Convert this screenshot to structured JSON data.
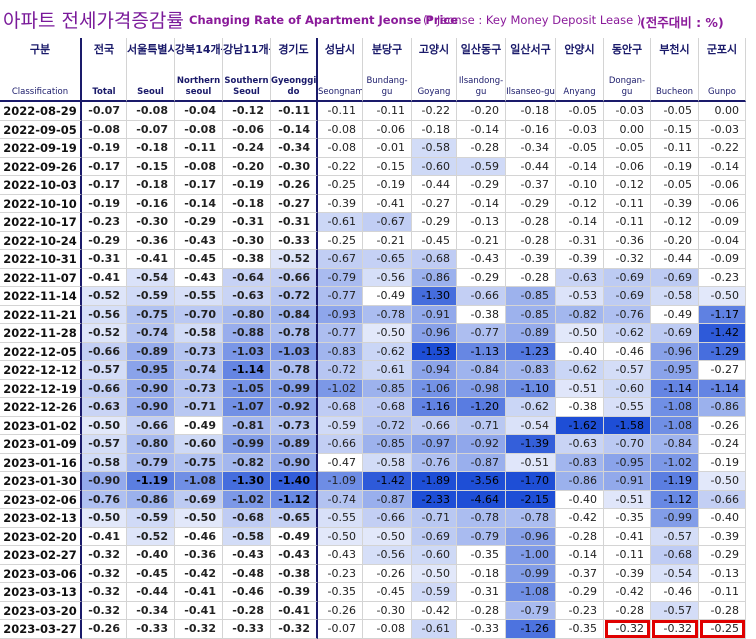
{
  "title": {
    "korean": "아파트 전세가격증감률",
    "english": "Changing Rate of Apartment Jeonse Price",
    "note": "(* Jeonse : Key Money Deposit Lease )",
    "unit": "(전주대비 : %)"
  },
  "colors": {
    "title": "#7a1a9a",
    "header_text": "#1a1a6a",
    "highlight_frame": "#e00000",
    "negative_scale_light": "#e6ecfa",
    "negative_scale_dark": "#1f4fd6"
  },
  "chart_data": {
    "type": "heatmap",
    "columns": [
      {
        "ko": "구분",
        "en": "Classification"
      },
      {
        "ko": "전국",
        "en": "Total"
      },
      {
        "ko": "서울특별시",
        "en": "Seoul"
      },
      {
        "ko": "강북14개구",
        "en": "Northern seoul"
      },
      {
        "ko": "강남11개구",
        "en": "Southern Seoul"
      },
      {
        "ko": "경기도",
        "en": "Gyeonggi-do"
      },
      {
        "ko": "성남시",
        "en": "Seongnam"
      },
      {
        "ko": "분당구",
        "en": "Bundang-gu"
      },
      {
        "ko": "고양시",
        "en": "Goyang"
      },
      {
        "ko": "일산동구",
        "en": "Ilsandong-gu"
      },
      {
        "ko": "일산서구",
        "en": "Ilsanseo-gu"
      },
      {
        "ko": "안양시",
        "en": "Anyang"
      },
      {
        "ko": "동안구",
        "en": "Dongan-gu"
      },
      {
        "ko": "부천시",
        "en": "Bucheon"
      },
      {
        "ko": "군포시",
        "en": "Gunpo"
      }
    ],
    "rows": [
      {
        "date": "2022-08-29",
        "values": [
          "-0.07",
          "-0.08",
          "-0.04",
          "-0.12",
          "-0.11",
          "-0.11",
          "-0.11",
          "-0.22",
          "-0.20",
          "-0.18",
          "-0.05",
          "-0.03",
          "-0.05",
          "0.00"
        ]
      },
      {
        "date": "2022-09-05",
        "values": [
          "-0.08",
          "-0.07",
          "-0.08",
          "-0.06",
          "-0.14",
          "-0.08",
          "-0.06",
          "-0.18",
          "-0.14",
          "-0.16",
          "-0.03",
          "0.00",
          "-0.15",
          "-0.03"
        ]
      },
      {
        "date": "2022-09-19",
        "values": [
          "-0.19",
          "-0.18",
          "-0.11",
          "-0.24",
          "-0.34",
          "-0.08",
          "-0.01",
          "-0.58",
          "-0.28",
          "-0.34",
          "-0.05",
          "-0.05",
          "-0.11",
          "-0.22"
        ]
      },
      {
        "date": "2022-09-26",
        "values": [
          "-0.17",
          "-0.15",
          "-0.08",
          "-0.20",
          "-0.30",
          "-0.22",
          "-0.15",
          "-0.60",
          "-0.59",
          "-0.44",
          "-0.14",
          "-0.06",
          "-0.19",
          "-0.14"
        ]
      },
      {
        "date": "2022-10-03",
        "values": [
          "-0.17",
          "-0.18",
          "-0.17",
          "-0.19",
          "-0.26",
          "-0.25",
          "-0.19",
          "-0.44",
          "-0.29",
          "-0.37",
          "-0.10",
          "-0.12",
          "-0.05",
          "-0.06"
        ]
      },
      {
        "date": "2022-10-10",
        "values": [
          "-0.19",
          "-0.16",
          "-0.14",
          "-0.18",
          "-0.27",
          "-0.39",
          "-0.41",
          "-0.27",
          "-0.14",
          "-0.29",
          "-0.12",
          "-0.11",
          "-0.39",
          "-0.06"
        ]
      },
      {
        "date": "2022-10-17",
        "values": [
          "-0.23",
          "-0.30",
          "-0.29",
          "-0.31",
          "-0.31",
          "-0.61",
          "-0.67",
          "-0.29",
          "-0.13",
          "-0.28",
          "-0.14",
          "-0.11",
          "-0.12",
          "-0.09"
        ]
      },
      {
        "date": "2022-10-24",
        "values": [
          "-0.29",
          "-0.36",
          "-0.43",
          "-0.30",
          "-0.33",
          "-0.25",
          "-0.21",
          "-0.45",
          "-0.21",
          "-0.28",
          "-0.31",
          "-0.36",
          "-0.20",
          "-0.04"
        ]
      },
      {
        "date": "2022-10-31",
        "values": [
          "-0.31",
          "-0.41",
          "-0.45",
          "-0.38",
          "-0.52",
          "-0.67",
          "-0.65",
          "-0.68",
          "-0.43",
          "-0.39",
          "-0.39",
          "-0.32",
          "-0.44",
          "-0.09"
        ]
      },
      {
        "date": "2022-11-07",
        "values": [
          "-0.41",
          "-0.54",
          "-0.43",
          "-0.64",
          "-0.66",
          "-0.79",
          "-0.56",
          "-0.86",
          "-0.29",
          "-0.28",
          "-0.63",
          "-0.69",
          "-0.69",
          "-0.23"
        ]
      },
      {
        "date": "2022-11-14",
        "values": [
          "-0.52",
          "-0.59",
          "-0.55",
          "-0.63",
          "-0.72",
          "-0.77",
          "-0.49",
          "-1.30",
          "-0.66",
          "-0.85",
          "-0.53",
          "-0.69",
          "-0.58",
          "-0.50"
        ]
      },
      {
        "date": "2022-11-21",
        "values": [
          "-0.56",
          "-0.75",
          "-0.70",
          "-0.80",
          "-0.84",
          "-0.93",
          "-0.78",
          "-0.91",
          "-0.38",
          "-0.85",
          "-0.82",
          "-0.76",
          "-0.49",
          "-1.17"
        ]
      },
      {
        "date": "2022-11-28",
        "values": [
          "-0.52",
          "-0.74",
          "-0.58",
          "-0.88",
          "-0.78",
          "-0.77",
          "-0.50",
          "-0.96",
          "-0.77",
          "-0.89",
          "-0.50",
          "-0.62",
          "-0.69",
          "-1.42"
        ]
      },
      {
        "date": "2022-12-05",
        "values": [
          "-0.66",
          "-0.89",
          "-0.73",
          "-1.03",
          "-1.03",
          "-0.83",
          "-0.62",
          "-1.53",
          "-1.13",
          "-1.23",
          "-0.40",
          "-0.46",
          "-0.96",
          "-1.29"
        ]
      },
      {
        "date": "2022-12-12",
        "values": [
          "-0.57",
          "-0.95",
          "-0.74",
          "-1.14",
          "-0.78",
          "-0.72",
          "-0.61",
          "-0.94",
          "-0.84",
          "-0.83",
          "-0.62",
          "-0.57",
          "-0.95",
          "-0.27"
        ]
      },
      {
        "date": "2022-12-19",
        "values": [
          "-0.66",
          "-0.90",
          "-0.73",
          "-1.05",
          "-0.99",
          "-1.02",
          "-0.85",
          "-1.06",
          "-0.98",
          "-1.10",
          "-0.51",
          "-0.60",
          "-1.14",
          "-1.14"
        ]
      },
      {
        "date": "2022-12-26",
        "values": [
          "-0.63",
          "-0.90",
          "-0.71",
          "-1.07",
          "-0.92",
          "-0.68",
          "-0.68",
          "-1.16",
          "-1.20",
          "-0.62",
          "-0.38",
          "-0.55",
          "-1.08",
          "-0.86"
        ]
      },
      {
        "date": "2023-01-02",
        "values": [
          "-0.50",
          "-0.66",
          "-0.49",
          "-0.81",
          "-0.73",
          "-0.59",
          "-0.72",
          "-0.66",
          "-0.71",
          "-0.54",
          "-1.62",
          "-1.58",
          "-1.08",
          "-0.26"
        ]
      },
      {
        "date": "2023-01-09",
        "values": [
          "-0.57",
          "-0.80",
          "-0.60",
          "-0.99",
          "-0.89",
          "-0.66",
          "-0.85",
          "-0.97",
          "-0.92",
          "-1.39",
          "-0.63",
          "-0.70",
          "-0.84",
          "-0.24"
        ]
      },
      {
        "date": "2023-01-16",
        "values": [
          "-0.58",
          "-0.79",
          "-0.75",
          "-0.82",
          "-0.90",
          "-0.47",
          "-0.58",
          "-0.76",
          "-0.87",
          "-0.51",
          "-0.83",
          "-0.95",
          "-1.02",
          "-0.19"
        ]
      },
      {
        "date": "2023-01-30",
        "values": [
          "-0.90",
          "-1.19",
          "-1.08",
          "-1.30",
          "-1.40",
          "-1.09",
          "-1.42",
          "-1.89",
          "-3.56",
          "-1.70",
          "-0.86",
          "-0.91",
          "-1.19",
          "-0.50"
        ]
      },
      {
        "date": "2023-02-06",
        "values": [
          "-0.76",
          "-0.86",
          "-0.69",
          "-1.02",
          "-1.12",
          "-0.74",
          "-0.87",
          "-2.33",
          "-4.64",
          "-2.15",
          "-0.40",
          "-0.51",
          "-1.12",
          "-0.66"
        ]
      },
      {
        "date": "2023-02-13",
        "values": [
          "-0.50",
          "-0.59",
          "-0.50",
          "-0.68",
          "-0.65",
          "-0.55",
          "-0.66",
          "-0.71",
          "-0.78",
          "-0.78",
          "-0.42",
          "-0.35",
          "-0.99",
          "-0.40"
        ]
      },
      {
        "date": "2023-02-20",
        "values": [
          "-0.41",
          "-0.52",
          "-0.46",
          "-0.58",
          "-0.49",
          "-0.50",
          "-0.50",
          "-0.69",
          "-0.79",
          "-0.96",
          "-0.28",
          "-0.41",
          "-0.57",
          "-0.39"
        ]
      },
      {
        "date": "2023-02-27",
        "values": [
          "-0.32",
          "-0.40",
          "-0.36",
          "-0.43",
          "-0.43",
          "-0.43",
          "-0.56",
          "-0.60",
          "-0.35",
          "-1.00",
          "-0.14",
          "-0.11",
          "-0.68",
          "-0.29"
        ]
      },
      {
        "date": "2023-03-06",
        "values": [
          "-0.32",
          "-0.45",
          "-0.42",
          "-0.48",
          "-0.38",
          "-0.23",
          "-0.26",
          "-0.50",
          "-0.18",
          "-0.99",
          "-0.37",
          "-0.39",
          "-0.54",
          "-0.13"
        ]
      },
      {
        "date": "2023-03-13",
        "values": [
          "-0.32",
          "-0.44",
          "-0.41",
          "-0.46",
          "-0.39",
          "-0.35",
          "-0.45",
          "-0.59",
          "-0.31",
          "-1.08",
          "-0.29",
          "-0.42",
          "-0.46",
          "-0.11"
        ]
      },
      {
        "date": "2023-03-20",
        "values": [
          "-0.32",
          "-0.34",
          "-0.41",
          "-0.28",
          "-0.41",
          "-0.26",
          "-0.30",
          "-0.42",
          "-0.28",
          "-0.79",
          "-0.23",
          "-0.28",
          "-0.57",
          "-0.28"
        ]
      },
      {
        "date": "2023-03-27",
        "values": [
          "-0.26",
          "-0.33",
          "-0.32",
          "-0.33",
          "-0.32",
          "-0.07",
          "-0.08",
          "-0.61",
          "-0.33",
          "-1.26",
          "-0.35",
          "-0.32",
          "-0.32",
          "-0.25"
        ]
      }
    ],
    "bold_columns": [
      "Total",
      "Seoul",
      "Northern seoul",
      "Southern Seoul",
      "Gyeonggi-do"
    ],
    "highlighted_cells": [
      {
        "date": "2023-03-27",
        "column": "Dongan-gu"
      },
      {
        "date": "2023-03-27",
        "column": "Bucheon"
      },
      {
        "date": "2023-03-27",
        "column": "Gunpo"
      }
    ]
  }
}
